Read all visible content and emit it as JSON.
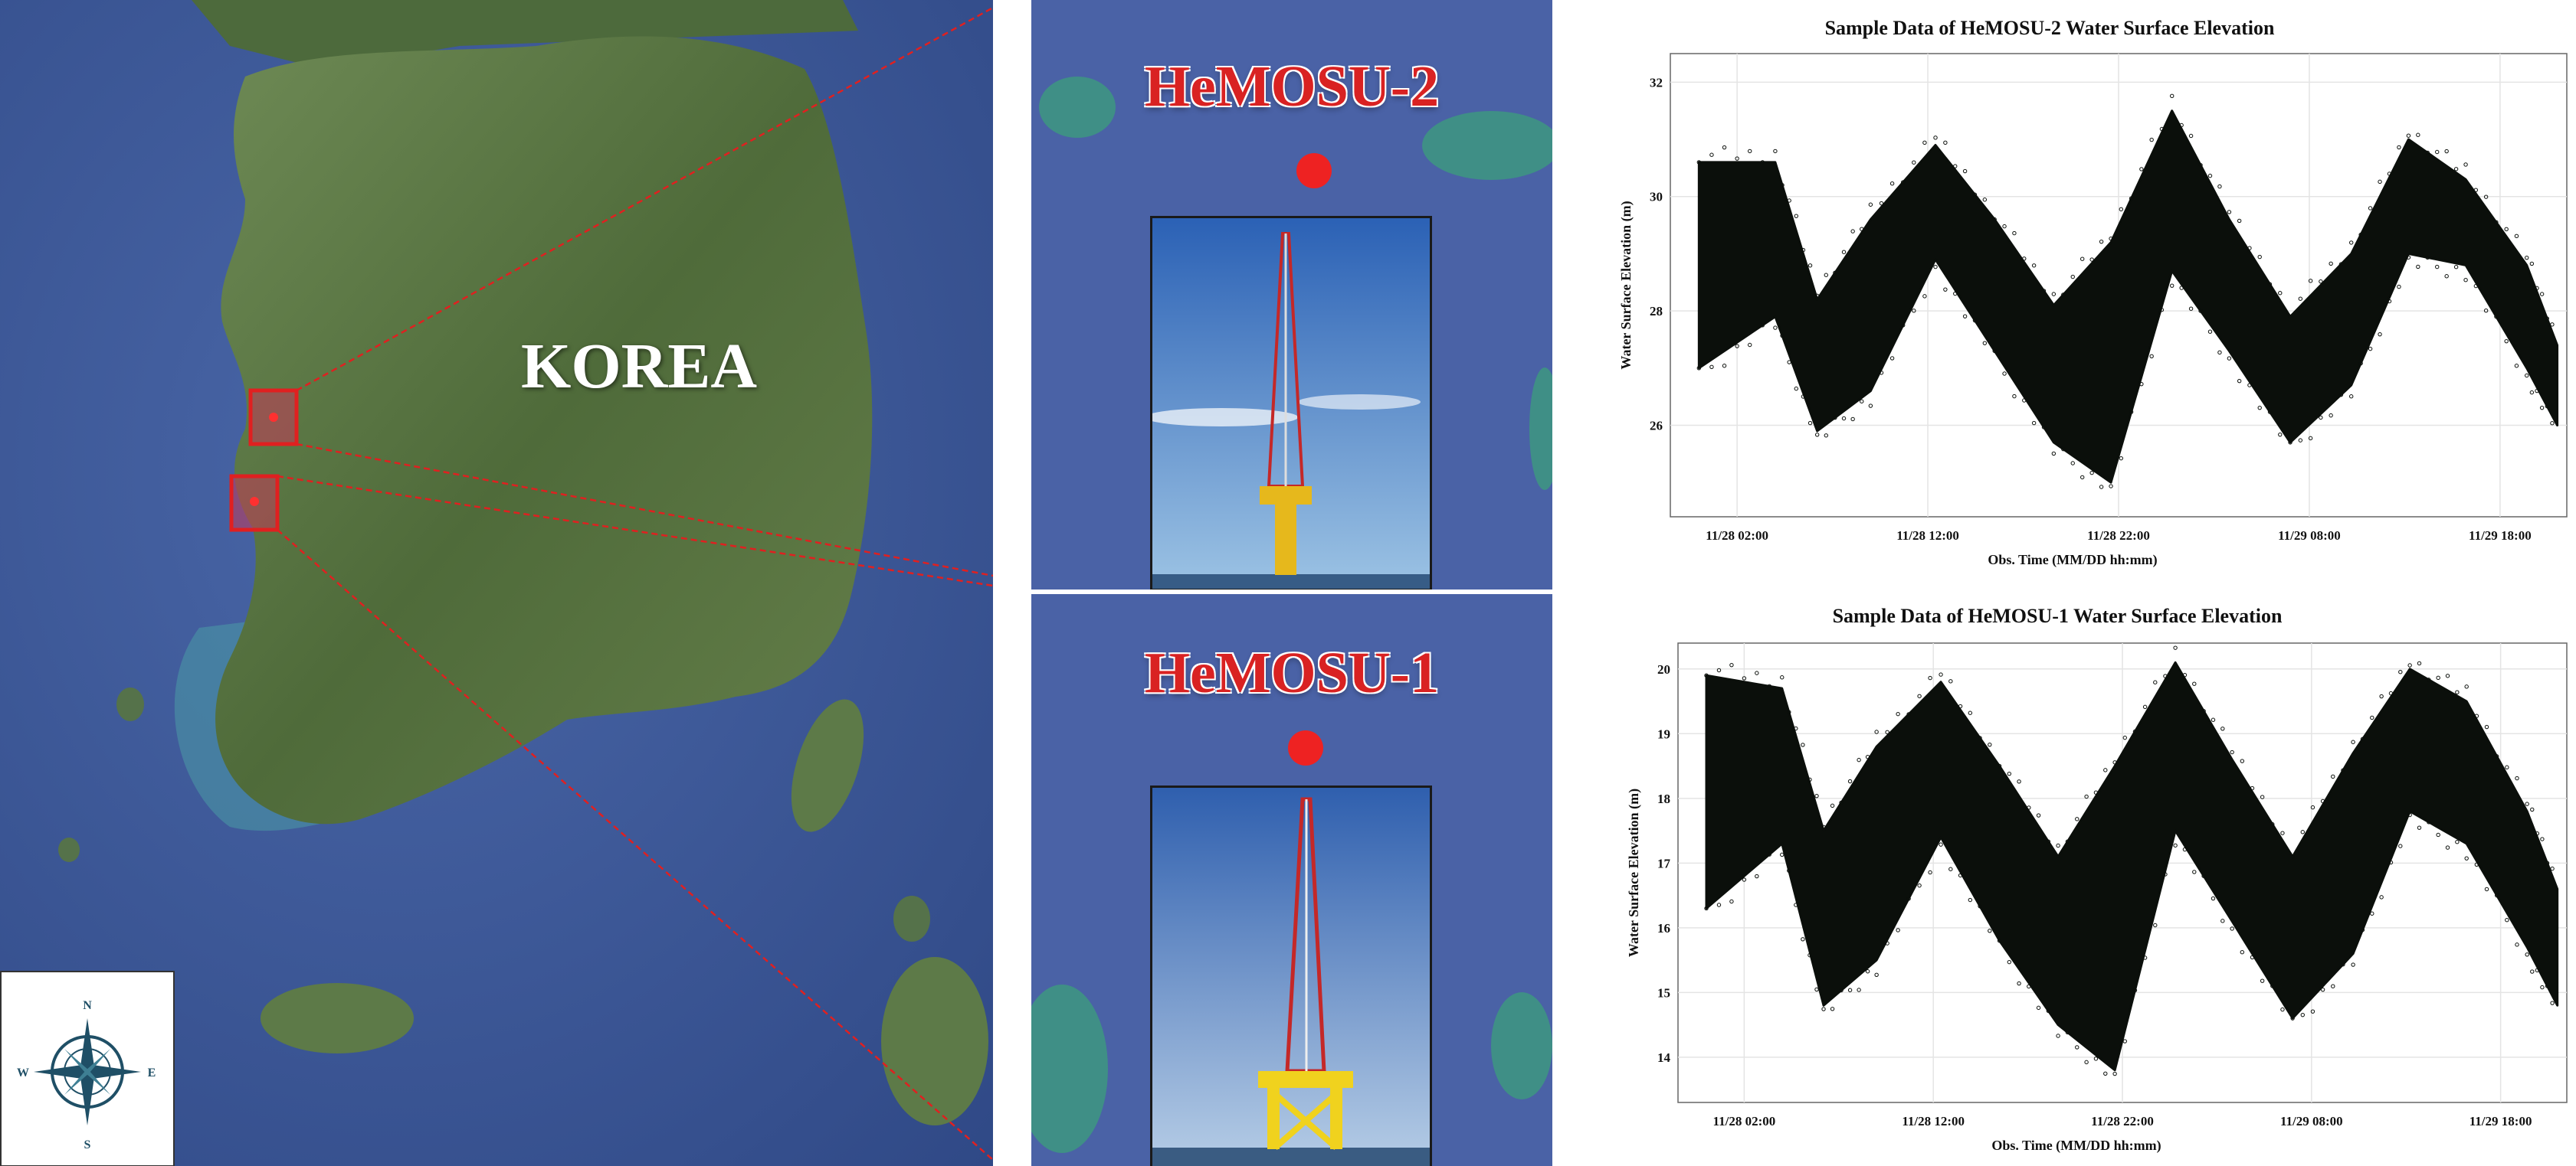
{
  "map": {
    "country_label": "KOREA",
    "compass": {
      "n": "N",
      "s": "S",
      "e": "E",
      "w": "W"
    },
    "colors": {
      "sea": "#3c5a9c",
      "land": "#5c7a45",
      "marker": "#e02020"
    }
  },
  "stations": [
    {
      "label": "HeMOSU-2"
    },
    {
      "label": "HeMOSU-1"
    }
  ],
  "chart_data": [
    {
      "type": "scatter",
      "title": "Sample Data of HeMOSU-2 Water Surface Elevation",
      "xlabel": "Obs. Time (MM/DD hh:mm)",
      "ylabel": "Water Surface Elevation (m)",
      "x_ticks": [
        "11/28 02:00",
        "11/28 12:00",
        "11/28 22:00",
        "11/29 08:00",
        "11/29 18:00"
      ],
      "x_tick_hours": [
        2,
        12,
        22,
        32,
        42
      ],
      "xlim_hours": [
        -1.5,
        45.5
      ],
      "y_ticks": [
        26,
        28,
        30,
        32
      ],
      "ylim": [
        24.4,
        32.5
      ],
      "grid": true,
      "series": [
        {
          "color": "#0b0f0b",
          "envelope_hours": [
            0,
            4,
            6.2,
            9,
            12.4,
            15.5,
            18.6,
            21.6,
            24.8,
            27.8,
            31,
            34.2,
            37.2,
            40.2,
            43.4,
            45
          ],
          "upper": [
            30.6,
            30.6,
            28.2,
            29.6,
            30.9,
            29.6,
            28.1,
            29.2,
            31.5,
            29.6,
            27.9,
            29.0,
            31.0,
            30.3,
            28.8,
            27.4
          ],
          "lower": [
            27.0,
            27.9,
            25.9,
            26.6,
            28.9,
            27.3,
            25.7,
            25.0,
            28.7,
            27.3,
            25.7,
            26.7,
            29.0,
            28.8,
            27.0,
            26.0
          ]
        }
      ]
    },
    {
      "type": "scatter",
      "title": "Sample Data of HeMOSU-1 Water Surface Elevation",
      "xlabel": "Obs. Time (MM/DD hh:mm)",
      "ylabel": "Water Surface Elevation (m)",
      "x_ticks": [
        "11/28 02:00",
        "11/28 12:00",
        "11/28 22:00",
        "11/29 08:00",
        "11/29 18:00"
      ],
      "x_tick_hours": [
        2,
        12,
        22,
        32,
        42
      ],
      "xlim_hours": [
        -1.5,
        45.5
      ],
      "y_ticks": [
        14,
        15,
        16,
        17,
        18,
        19,
        20
      ],
      "ylim": [
        13.3,
        20.4
      ],
      "grid": true,
      "series": [
        {
          "color": "#0b0f0b",
          "envelope_hours": [
            0,
            4,
            6.2,
            9,
            12.4,
            15.5,
            18.6,
            21.6,
            24.8,
            27.8,
            31,
            34.2,
            37.2,
            40.2,
            43.4,
            45
          ],
          "upper": [
            19.9,
            19.7,
            17.5,
            18.8,
            19.8,
            18.5,
            17.1,
            18.5,
            20.1,
            18.6,
            17.1,
            18.7,
            20.0,
            19.5,
            17.8,
            16.6
          ],
          "lower": [
            16.3,
            17.3,
            14.8,
            15.5,
            17.4,
            15.8,
            14.5,
            13.8,
            17.5,
            16.1,
            14.6,
            15.6,
            17.8,
            17.3,
            15.7,
            14.8
          ]
        }
      ]
    }
  ]
}
